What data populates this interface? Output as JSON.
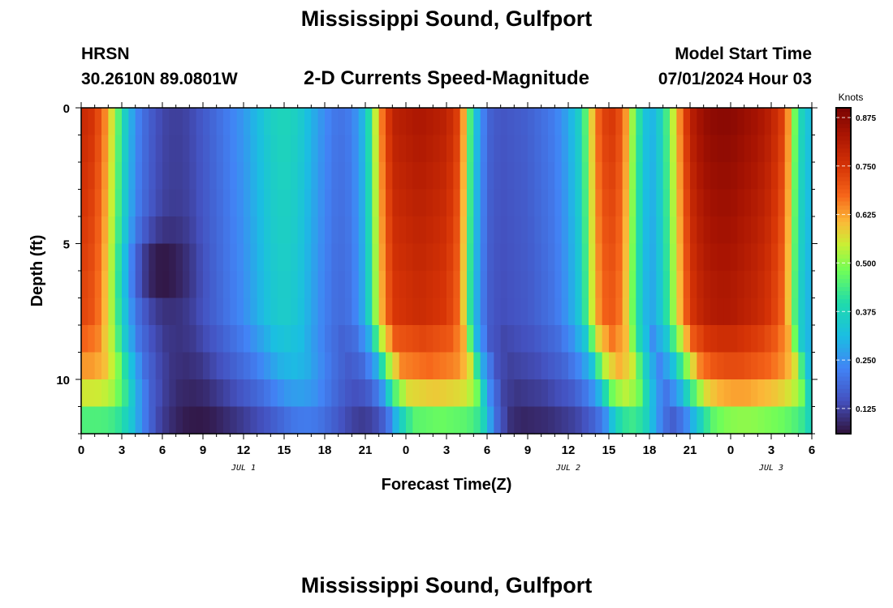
{
  "header": {
    "title": "Mississippi Sound, Gulfport",
    "station_id": "HRSN",
    "station_location": "30.2610N  89.0801W",
    "subtitle": "2-D Currents Speed-Magnitude",
    "model_start_label": "Model Start Time",
    "model_start_value": "07/01/2024 Hour 03",
    "repeated_title": "Mississippi Sound, Gulfport"
  },
  "chart_data": {
    "type": "heatmap",
    "title": "2-D Currents Speed-Magnitude",
    "xlabel": "Forecast Time(Z)",
    "ylabel": "Depth (ft)",
    "colorbar_label": "Knots",
    "x_range_hours": [
      0,
      54
    ],
    "x_tick_hours": [
      0,
      3,
      6,
      9,
      12,
      15,
      18,
      21,
      24,
      27,
      30,
      33,
      36,
      39,
      42,
      45,
      48,
      51,
      54
    ],
    "x_tick_labels": [
      "0",
      "3",
      "6",
      "9",
      "12",
      "15",
      "18",
      "21",
      "0",
      "3",
      "6",
      "9",
      "12",
      "15",
      "18",
      "21",
      "0",
      "3",
      "6"
    ],
    "date_labels": [
      {
        "text": "JUL 1",
        "hour": 12
      },
      {
        "text": "JUL 2",
        "hour": 36
      },
      {
        "text": "JUL 3",
        "hour": 51
      }
    ],
    "y_range_ft": [
      0,
      12
    ],
    "y_inverted": true,
    "y_ticks": [
      0,
      5,
      10
    ],
    "y_tick_labels": [
      "0",
      "5",
      "10"
    ],
    "depth_bins_ft": [
      0.5,
      1.5,
      2.5,
      3.5,
      4.5,
      5.5,
      6.5,
      7.5,
      8.5,
      9.5,
      10.5,
      11.5
    ],
    "colorbar_range": [
      0.06,
      0.9
    ],
    "colorbar_ticks": [
      0.125,
      0.25,
      0.375,
      0.5,
      0.625,
      0.75,
      0.875
    ],
    "colorbar_tick_labels": [
      "0.125",
      "0.250",
      "0.375",
      "0.500",
      "0.625",
      "0.750",
      "0.875"
    ],
    "surface_speed_by_hour": {
      "hours": [
        0,
        1,
        2,
        3,
        4,
        5,
        6,
        7,
        8,
        9,
        10,
        12,
        13,
        14,
        15,
        16,
        17,
        18,
        19,
        20,
        21,
        22,
        23,
        25,
        27,
        28,
        29,
        30,
        31,
        33,
        35,
        36,
        37,
        38,
        39,
        40,
        41,
        42,
        43,
        44,
        45,
        46,
        47,
        48,
        50,
        51,
        52,
        53,
        54
      ],
      "knots": [
        0.78,
        0.75,
        0.62,
        0.4,
        0.24,
        0.17,
        0.13,
        0.12,
        0.13,
        0.16,
        0.19,
        0.26,
        0.31,
        0.36,
        0.38,
        0.36,
        0.3,
        0.24,
        0.2,
        0.22,
        0.32,
        0.62,
        0.8,
        0.83,
        0.8,
        0.72,
        0.35,
        0.18,
        0.15,
        0.17,
        0.22,
        0.28,
        0.38,
        0.66,
        0.76,
        0.7,
        0.45,
        0.28,
        0.38,
        0.6,
        0.8,
        0.86,
        0.88,
        0.88,
        0.84,
        0.8,
        0.72,
        0.4,
        0.3
      ]
    },
    "minimum_cell": {
      "hour": 6,
      "depth_ft": 6,
      "knots": 0.06
    }
  }
}
